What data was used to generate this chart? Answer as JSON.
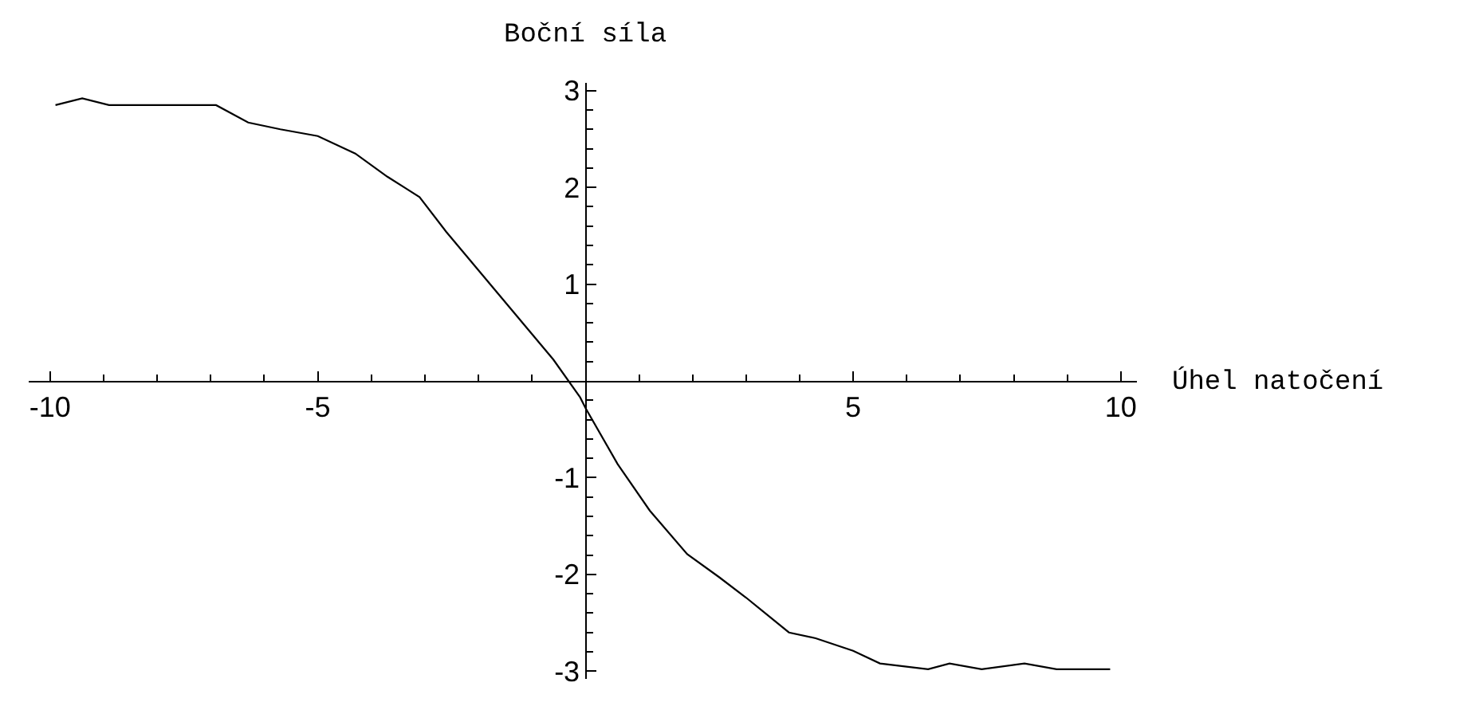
{
  "chart_data": {
    "type": "line",
    "xlabel": "Úhel natočení",
    "ylabel": "Boční síla",
    "x": [
      -9.9,
      -9.4,
      -8.9,
      -6.9,
      -6.3,
      -5.7,
      -5.0,
      -4.3,
      -3.7,
      -3.1,
      -2.6,
      -0.6,
      -0.1,
      0.0,
      0.6,
      1.2,
      1.9,
      2.5,
      3.0,
      3.8,
      4.3,
      5.0,
      5.5,
      6.4,
      6.8,
      7.4,
      8.2,
      8.8,
      9.8
    ],
    "series": [
      {
        "color": "#000000",
        "values": [
          2.85,
          2.92,
          2.85,
          2.85,
          2.67,
          2.6,
          2.53,
          2.35,
          2.11,
          1.9,
          1.54,
          0.22,
          -0.17,
          -0.28,
          -0.86,
          -1.34,
          -1.79,
          -2.03,
          -2.24,
          -2.6,
          -2.66,
          -2.79,
          -2.92,
          -2.98,
          -2.92,
          -2.98,
          -2.92,
          -2.98,
          -2.98
        ]
      }
    ],
    "xlim": [
      -10.4,
      10.3
    ],
    "ylim": [
      -3.08,
      3.08
    ],
    "xticks": [
      -10,
      {
        "value": -9,
        "label": null
      },
      {
        "value": -8,
        "label": null
      },
      {
        "value": -7,
        "label": null
      },
      {
        "value": -6,
        "label": null
      },
      -5,
      {
        "value": -4,
        "label": null
      },
      {
        "value": -3,
        "label": null
      },
      {
        "value": -2,
        "label": null
      },
      {
        "value": -1,
        "label": null
      },
      {
        "value": 1,
        "label": null
      },
      {
        "value": 2,
        "label": null
      },
      {
        "value": 3,
        "label": null
      },
      {
        "value": 4,
        "label": null
      },
      5,
      {
        "value": 6,
        "label": null
      },
      {
        "value": 7,
        "label": null
      },
      {
        "value": 8,
        "label": null
      },
      {
        "value": 9,
        "label": null
      },
      10
    ],
    "yticks": [
      -3,
      {
        "value": -2.8,
        "label": null
      },
      {
        "value": -2.6,
        "label": null
      },
      {
        "value": -2.4,
        "label": null
      },
      {
        "value": -2.2,
        "label": null
      },
      -2,
      {
        "value": -1.8,
        "label": null
      },
      {
        "value": -1.6,
        "label": null
      },
      {
        "value": -1.4,
        "label": null
      },
      {
        "value": -1.2,
        "label": null
      },
      -1,
      {
        "value": -0.8,
        "label": null
      },
      {
        "value": -0.6,
        "label": null
      },
      {
        "value": -0.4,
        "label": null
      },
      {
        "value": -0.2,
        "label": null
      },
      {
        "value": 0.2,
        "label": null
      },
      {
        "value": 0.4,
        "label": null
      },
      {
        "value": 0.6,
        "label": null
      },
      {
        "value": 0.8,
        "label": null
      },
      1,
      {
        "value": 1.2,
        "label": null
      },
      {
        "value": 1.4,
        "label": null
      },
      {
        "value": 1.6,
        "label": null
      },
      {
        "value": 1.8,
        "label": null
      },
      2,
      {
        "value": 2.2,
        "label": null
      },
      {
        "value": 2.4,
        "label": null
      },
      {
        "value": 2.6,
        "label": null
      },
      {
        "value": 2.8,
        "label": null
      },
      3
    ],
    "grid": false
  }
}
